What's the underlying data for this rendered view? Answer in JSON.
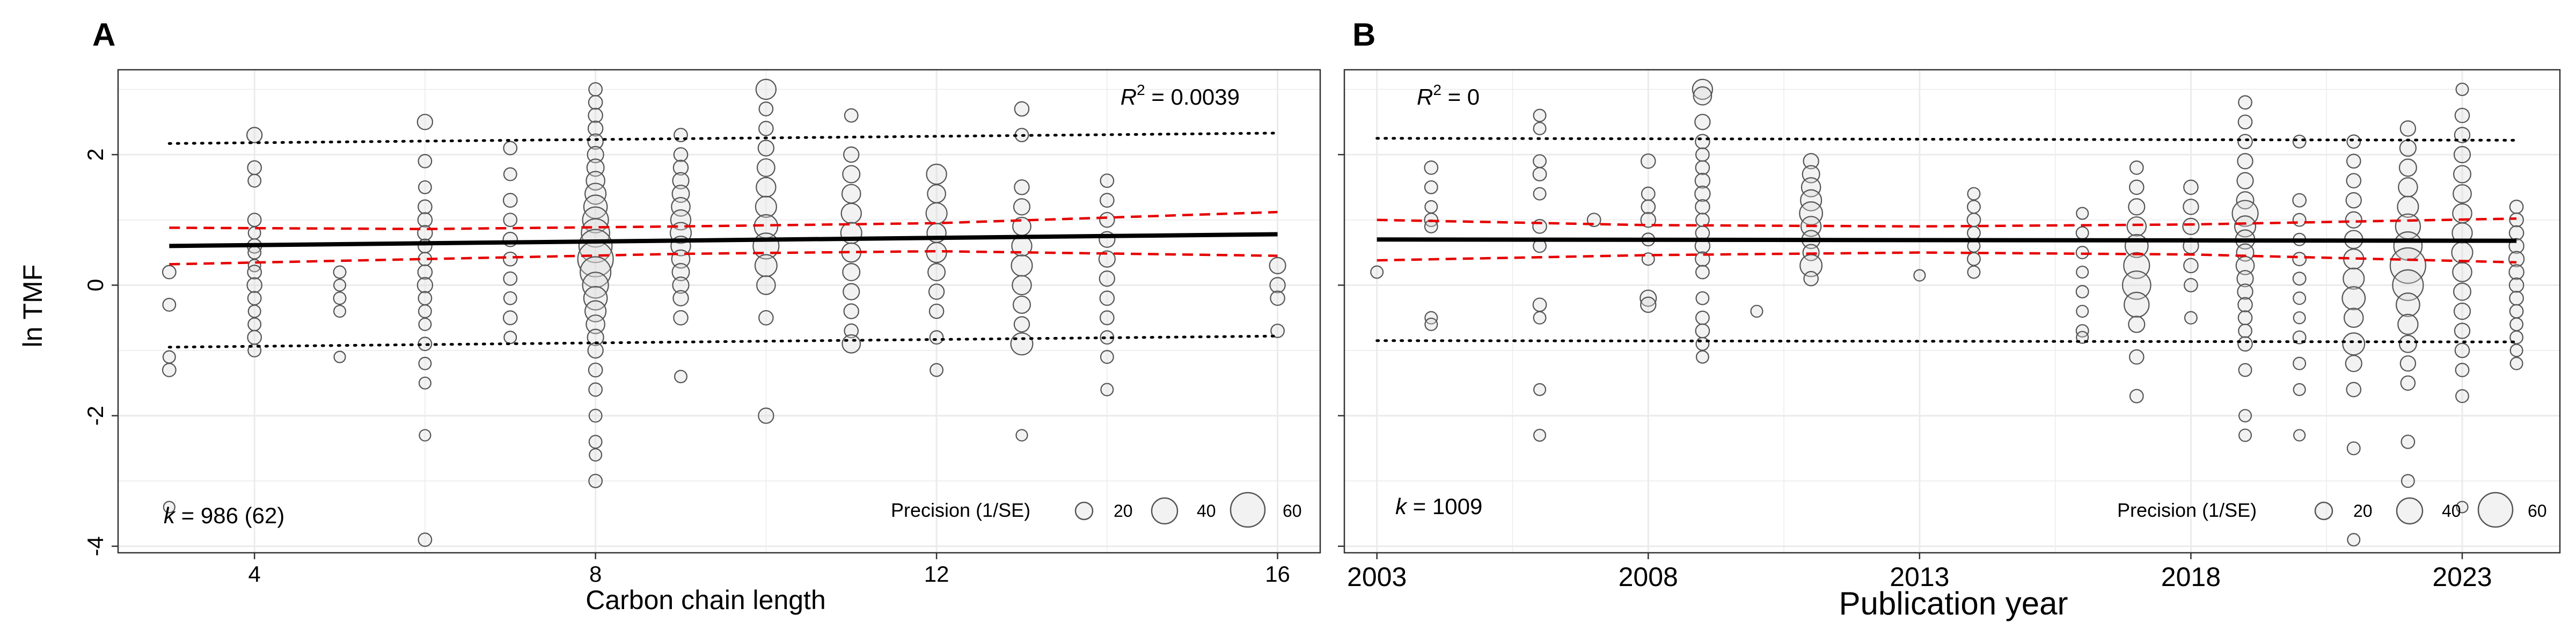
{
  "colors": {
    "panel_bg": "#ffffff",
    "panel_border": "#333333",
    "grid": "#ebebeb",
    "point_stroke": "#555555",
    "point_fill": "#d9d9d9",
    "fit_line": "#000000",
    "ci_line": "#e60000",
    "pi_line": "#000000"
  },
  "shared": {
    "ylabel": "ln TMF",
    "legend_title": "Precision (1/SE)",
    "legend_sizes": [
      "20",
      "40",
      "60"
    ]
  },
  "chart_data": [
    {
      "type": "scatter",
      "panel_label": "A",
      "xlabel": "Carbon chain length",
      "ylabel": "ln TMF",
      "xlim": [
        2.4,
        16.5
      ],
      "ylim": [
        -4.1,
        3.3
      ],
      "xticks": [
        4,
        8,
        12,
        16
      ],
      "xtick_labels": [
        "4",
        "8",
        "12",
        "16"
      ],
      "yticks": [
        -4,
        -2,
        0,
        2
      ],
      "ytick_labels": [
        "-4",
        "-2",
        "0",
        "2"
      ],
      "grid": true,
      "r2_prefix": "R",
      "r2_exp": "2",
      "r2_value": " = 0.0039",
      "r2_position": "top-right",
      "k_prefix": "k",
      "k_value": " = 986 (62)",
      "legend_position": "bottom-right",
      "fit_line": {
        "x": [
          3,
          16
        ],
        "y": [
          0.6,
          0.78
        ]
      },
      "ci_upper": {
        "x": [
          3,
          6,
          9,
          12,
          16
        ],
        "y": [
          0.88,
          0.86,
          0.9,
          0.95,
          1.12
        ]
      },
      "ci_lower": {
        "x": [
          3,
          6,
          9,
          12,
          16
        ],
        "y": [
          0.32,
          0.4,
          0.48,
          0.52,
          0.45
        ]
      },
      "pi_upper": {
        "x": [
          3,
          16
        ],
        "y": [
          2.17,
          2.33
        ]
      },
      "pi_lower": {
        "x": [
          3,
          16
        ],
        "y": [
          -0.95,
          -0.78
        ]
      },
      "point_groups": [
        {
          "x": 3,
          "ys": [
            0.2,
            -0.3,
            -1.1,
            -1.3,
            -3.4
          ],
          "p": [
            14,
            13,
            12,
            14,
            10
          ]
        },
        {
          "x": 4,
          "ys": [
            2.3,
            1.8,
            1.6,
            1.0,
            0.8,
            0.6,
            0.5,
            0.3,
            0.2,
            0.0,
            -0.2,
            -0.4,
            -0.6,
            -0.8,
            -1.0
          ],
          "p": [
            18,
            15,
            13,
            14,
            12,
            16,
            13,
            12,
            15,
            17,
            14,
            12,
            13,
            15,
            13
          ]
        },
        {
          "x": 5,
          "ys": [
            0.2,
            0.0,
            -0.2,
            -0.4,
            -1.1
          ],
          "p": [
            12,
            11,
            12,
            11,
            10
          ]
        },
        {
          "x": 6,
          "ys": [
            2.5,
            1.9,
            1.5,
            1.2,
            1.0,
            0.8,
            0.6,
            0.4,
            0.2,
            0.0,
            -0.2,
            -0.4,
            -0.6,
            -0.9,
            -1.2,
            -1.5,
            -2.3,
            -3.9
          ],
          "p": [
            18,
            14,
            13,
            15,
            16,
            17,
            15,
            14,
            16,
            18,
            14,
            13,
            12,
            14,
            12,
            11,
            10,
            14
          ]
        },
        {
          "x": 7,
          "ys": [
            2.1,
            1.7,
            1.3,
            1.0,
            0.7,
            0.4,
            0.1,
            -0.2,
            -0.5,
            -0.8
          ],
          "p": [
            14,
            13,
            15,
            14,
            16,
            15,
            14,
            13,
            15,
            12
          ]
        },
        {
          "x": 8,
          "ys": [
            3.0,
            2.8,
            2.6,
            2.4,
            2.2,
            2.0,
            1.8,
            1.6,
            1.4,
            1.2,
            1.0,
            0.8,
            0.6,
            0.4,
            0.2,
            0.0,
            -0.2,
            -0.4,
            -0.6,
            -0.8,
            -1.0,
            -1.3,
            -1.6,
            -2.0,
            -2.4,
            -2.6,
            -3.0
          ],
          "p": [
            14,
            15,
            16,
            17,
            18,
            20,
            22,
            25,
            30,
            35,
            40,
            45,
            55,
            60,
            50,
            40,
            35,
            30,
            25,
            20,
            18,
            15,
            14,
            13,
            13,
            12,
            14
          ]
        },
        {
          "x": 9,
          "ys": [
            2.3,
            2.0,
            1.8,
            1.6,
            1.4,
            1.2,
            1.0,
            0.8,
            0.6,
            0.4,
            0.2,
            0.0,
            -0.2,
            -0.5,
            -1.4
          ],
          "p": [
            14,
            15,
            17,
            20,
            22,
            25,
            28,
            30,
            27,
            24,
            22,
            20,
            18,
            16,
            12
          ]
        },
        {
          "x": 10,
          "ys": [
            3.0,
            2.7,
            2.4,
            2.1,
            1.8,
            1.5,
            1.2,
            0.9,
            0.6,
            0.3,
            0.0,
            -0.5,
            -2.0
          ],
          "p": [
            28,
            15,
            16,
            19,
            23,
            27,
            30,
            35,
            40,
            32,
            25,
            16,
            18
          ]
        },
        {
          "x": 11,
          "ys": [
            2.6,
            2.0,
            1.7,
            1.4,
            1.1,
            0.8,
            0.5,
            0.2,
            -0.1,
            -0.4,
            -0.7,
            -0.9
          ],
          "p": [
            14,
            18,
            22,
            25,
            28,
            30,
            26,
            22,
            20,
            17,
            15,
            24
          ]
        },
        {
          "x": 12,
          "ys": [
            1.7,
            1.4,
            1.1,
            0.8,
            0.5,
            0.2,
            -0.1,
            -0.4,
            -0.8,
            -1.3
          ],
          "p": [
            28,
            24,
            30,
            26,
            28,
            22,
            18,
            16,
            14,
            13
          ]
        },
        {
          "x": 13,
          "ys": [
            2.7,
            2.3,
            1.5,
            1.2,
            0.9,
            0.6,
            0.3,
            0.0,
            -0.3,
            -0.6,
            -0.9,
            -2.3
          ],
          "p": [
            16,
            14,
            17,
            20,
            24,
            28,
            30,
            26,
            22,
            18,
            32,
            10
          ]
        },
        {
          "x": 14,
          "ys": [
            1.6,
            1.3,
            1.0,
            0.7,
            0.4,
            0.1,
            -0.2,
            -0.5,
            -0.8,
            -1.1,
            -1.6
          ],
          "p": [
            14,
            15,
            17,
            19,
            20,
            18,
            16,
            15,
            14,
            13,
            12
          ]
        },
        {
          "x": 16,
          "ys": [
            0.3,
            0.0,
            -0.2,
            -0.7
          ],
          "p": [
            20,
            18,
            16,
            14
          ]
        }
      ]
    },
    {
      "type": "scatter",
      "panel_label": "B",
      "xlabel": "Publication year",
      "ylabel": "ln TMF",
      "xlim": [
        2002.4,
        2024.8
      ],
      "ylim": [
        -4.1,
        3.3
      ],
      "xticks": [
        2003,
        2008,
        2013,
        2018,
        2023
      ],
      "xtick_labels": [
        "2003",
        "2008",
        "2013",
        "2018",
        "2023"
      ],
      "yticks": [
        -4,
        -2,
        0,
        2
      ],
      "ytick_labels": [
        "-4",
        "-2",
        "0",
        "2"
      ],
      "grid": true,
      "r2_prefix": "R",
      "r2_exp": "2",
      "r2_value": " = 0",
      "r2_position": "top-left",
      "k_prefix": "k",
      "k_value": " = 1009",
      "legend_position": "bottom-right",
      "fit_line": {
        "x": [
          2003,
          2024
        ],
        "y": [
          0.7,
          0.68
        ]
      },
      "ci_upper": {
        "x": [
          2003,
          2008,
          2013,
          2018,
          2024
        ],
        "y": [
          1.0,
          0.92,
          0.9,
          0.93,
          1.02
        ]
      },
      "ci_lower": {
        "x": [
          2003,
          2008,
          2013,
          2018,
          2024
        ],
        "y": [
          0.38,
          0.46,
          0.5,
          0.47,
          0.35
        ]
      },
      "pi_upper": {
        "x": [
          2003,
          2024
        ],
        "y": [
          2.25,
          2.22
        ]
      },
      "pi_lower": {
        "x": [
          2003,
          2024
        ],
        "y": [
          -0.85,
          -0.87
        ]
      },
      "point_groups": [
        {
          "x": 2003,
          "ys": [
            0.2
          ],
          "p": [
            12
          ]
        },
        {
          "x": 2004,
          "ys": [
            1.8,
            1.5,
            1.2,
            1.0,
            0.9,
            -0.5,
            -0.6
          ],
          "p": [
            14,
            13,
            12,
            14,
            13,
            12,
            12
          ]
        },
        {
          "x": 2006,
          "ys": [
            2.6,
            2.4,
            1.9,
            1.7,
            1.4,
            0.9,
            0.6,
            -0.3,
            -0.5,
            -1.6,
            -2.3
          ],
          "p": [
            12,
            12,
            13,
            14,
            12,
            15,
            13,
            14,
            12,
            11,
            11
          ]
        },
        {
          "x": 2007,
          "ys": [
            1.0
          ],
          "p": [
            14
          ]
        },
        {
          "x": 2008,
          "ys": [
            1.9,
            1.4,
            1.2,
            1.0,
            0.7,
            0.4,
            -0.2,
            -0.3
          ],
          "p": [
            16,
            14,
            15,
            17,
            13,
            12,
            20,
            18
          ]
        },
        {
          "x": 2009,
          "ys": [
            3.0,
            2.9,
            2.5,
            2.2,
            2.0,
            1.8,
            1.6,
            1.4,
            1.2,
            1.0,
            0.8,
            0.6,
            0.4,
            0.2,
            -0.2,
            -0.5,
            -0.7,
            -0.9,
            -1.1
          ],
          "p": [
            28,
            24,
            18,
            16,
            14,
            15,
            17,
            18,
            16,
            14,
            15,
            17,
            16,
            14,
            13,
            14,
            15,
            13,
            12
          ]
        },
        {
          "x": 2010,
          "ys": [
            -0.4
          ],
          "p": [
            11
          ]
        },
        {
          "x": 2011,
          "ys": [
            1.9,
            1.7,
            1.5,
            1.3,
            1.1,
            0.9,
            0.7,
            0.5,
            0.3,
            0.1
          ],
          "p": [
            18,
            22,
            26,
            30,
            34,
            28,
            24,
            20,
            32,
            16
          ]
        },
        {
          "x": 2013,
          "ys": [
            0.15
          ],
          "p": [
            10
          ]
        },
        {
          "x": 2014,
          "ys": [
            1.4,
            1.2,
            1.0,
            0.8,
            0.6,
            0.4,
            0.2
          ],
          "p": [
            12,
            13,
            14,
            13,
            12,
            13,
            12
          ]
        },
        {
          "x": 2016,
          "ys": [
            1.1,
            0.8,
            0.5,
            0.2,
            -0.1,
            -0.4,
            -0.7,
            -0.8
          ],
          "p": [
            11,
            12,
            12,
            11,
            12,
            11,
            12,
            11
          ]
        },
        {
          "x": 2017,
          "ys": [
            1.8,
            1.5,
            1.2,
            0.9,
            0.6,
            0.3,
            0.0,
            -0.3,
            -0.6,
            -1.1,
            -1.7
          ],
          "p": [
            14,
            16,
            20,
            26,
            34,
            40,
            45,
            38,
            20,
            16,
            14
          ]
        },
        {
          "x": 2018,
          "ys": [
            1.5,
            1.2,
            0.9,
            0.6,
            0.3,
            0.0,
            -0.5
          ],
          "p": [
            16,
            18,
            20,
            18,
            16,
            14,
            12
          ]
        },
        {
          "x": 2019,
          "ys": [
            2.8,
            2.5,
            2.2,
            1.9,
            1.6,
            1.3,
            1.1,
            0.9,
            0.7,
            0.5,
            0.3,
            0.1,
            -0.1,
            -0.3,
            -0.5,
            -0.7,
            -0.9,
            -1.3,
            -2.0,
            -2.3
          ],
          "p": [
            14,
            15,
            16,
            18,
            20,
            22,
            40,
            30,
            26,
            22,
            24,
            20,
            18,
            16,
            15,
            14,
            16,
            13,
            12,
            12
          ]
        },
        {
          "x": 2020,
          "ys": [
            2.2,
            1.3,
            1.0,
            0.7,
            0.4,
            0.1,
            -0.2,
            -0.5,
            -0.8,
            -1.2,
            -1.6,
            -2.3
          ],
          "p": [
            13,
            14,
            13,
            12,
            14,
            13,
            12,
            11,
            13,
            12,
            11,
            10
          ]
        },
        {
          "x": 2021,
          "ys": [
            2.2,
            1.9,
            1.6,
            1.3,
            1.0,
            0.7,
            0.4,
            0.1,
            -0.2,
            -0.5,
            -0.9,
            -1.2,
            -1.6,
            -2.5,
            -3.9
          ],
          "p": [
            14,
            15,
            16,
            18,
            20,
            24,
            28,
            30,
            34,
            26,
            32,
            20,
            16,
            13,
            12
          ]
        },
        {
          "x": 2022,
          "ys": [
            2.4,
            2.1,
            1.8,
            1.5,
            1.2,
            0.9,
            0.6,
            0.3,
            0.0,
            -0.3,
            -0.6,
            -0.9,
            -1.2,
            -1.5,
            -2.4,
            -3.0
          ],
          "p": [
            18,
            20,
            22,
            26,
            30,
            38,
            45,
            60,
            50,
            35,
            28,
            22,
            18,
            16,
            14,
            13
          ]
        },
        {
          "x": 2023,
          "ys": [
            3.0,
            2.6,
            2.3,
            2.0,
            1.7,
            1.4,
            1.1,
            0.8,
            0.5,
            0.2,
            -0.1,
            -0.4,
            -0.7,
            -1.0,
            -1.3,
            -1.7,
            -3.4
          ],
          "p": [
            12,
            16,
            18,
            20,
            22,
            24,
            26,
            28,
            30,
            26,
            22,
            20,
            18,
            16,
            14,
            13,
            10
          ]
        },
        {
          "x": 2024,
          "ys": [
            1.2,
            1.0,
            0.8,
            0.6,
            0.4,
            0.2,
            0.0,
            -0.2,
            -0.4,
            -0.6,
            -0.8,
            -1.0,
            -1.2
          ],
          "p": [
            14,
            15,
            16,
            17,
            18,
            17,
            16,
            15,
            14,
            13,
            13,
            12,
            12
          ]
        }
      ]
    }
  ]
}
